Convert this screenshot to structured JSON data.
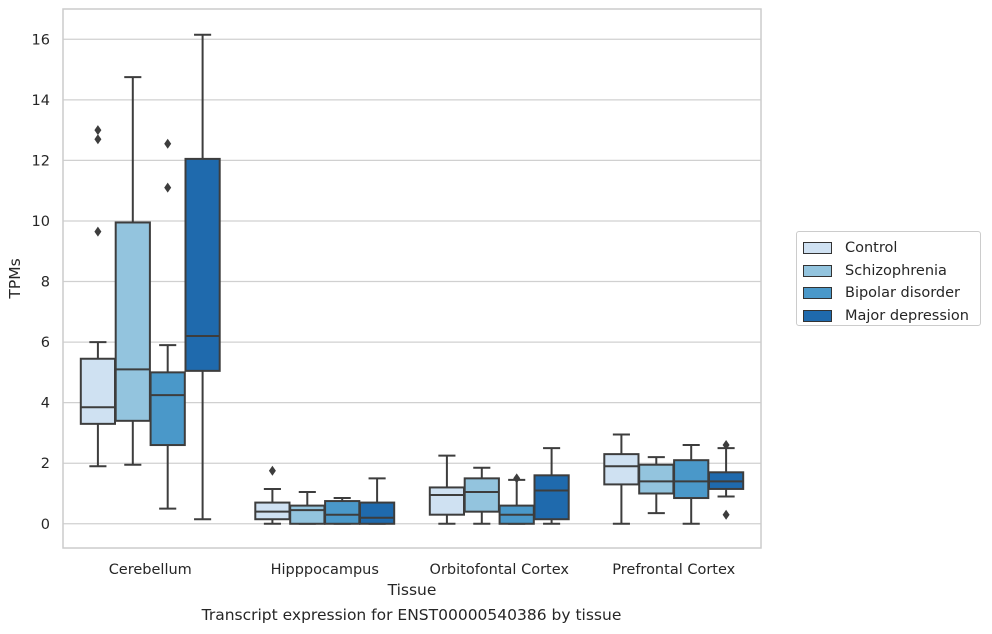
{
  "caption": "Transcript expression for ENST00000540386 by tissue",
  "chart_data": {
    "type": "box",
    "xlabel": "Tissue",
    "ylabel": "TPMs",
    "ylim": [
      -0.8,
      17
    ],
    "yticks": [
      0,
      2,
      4,
      6,
      8,
      10,
      12,
      14,
      16
    ],
    "ytick_labels": [
      "0",
      "2",
      "4",
      "6",
      "8",
      "10",
      "12",
      "14",
      "16"
    ],
    "grid": "horizontal",
    "legend_position": "right",
    "categories": [
      "Cerebellum",
      "Hipppocampus",
      "Orbitofontal Cortex",
      "Prefrontal Cortex"
    ],
    "colors": {
      "Control": "#cfe1f2",
      "Schizophrenia": "#93c4de",
      "Bipolar disorder": "#4a98c9",
      "Major depression": "#1f6aad",
      "edge": "#3d3d3d",
      "grid": "#d0d0d0"
    },
    "series": [
      {
        "name": "Control",
        "boxes": [
          {
            "whislo": 1.9,
            "q1": 3.3,
            "med": 3.85,
            "q3": 5.45,
            "whishi": 6.0,
            "fliers": [
              9.65,
              12.7,
              13.0
            ]
          },
          {
            "whislo": 0.0,
            "q1": 0.15,
            "med": 0.4,
            "q3": 0.7,
            "whishi": 1.15,
            "fliers": [
              1.75
            ]
          },
          {
            "whislo": 0.0,
            "q1": 0.3,
            "med": 0.95,
            "q3": 1.2,
            "whishi": 2.25,
            "fliers": []
          },
          {
            "whislo": 0.0,
            "q1": 1.3,
            "med": 1.9,
            "q3": 2.3,
            "whishi": 2.95,
            "fliers": []
          }
        ]
      },
      {
        "name": "Schizophrenia",
        "boxes": [
          {
            "whislo": 1.95,
            "q1": 3.4,
            "med": 5.1,
            "q3": 9.95,
            "whishi": 14.75,
            "fliers": []
          },
          {
            "whislo": 0.0,
            "q1": 0.0,
            "med": 0.45,
            "q3": 0.6,
            "whishi": 1.05,
            "fliers": []
          },
          {
            "whislo": 0.0,
            "q1": 0.4,
            "med": 1.05,
            "q3": 1.5,
            "whishi": 1.85,
            "fliers": []
          },
          {
            "whislo": 0.35,
            "q1": 1.0,
            "med": 1.4,
            "q3": 1.95,
            "whishi": 2.2,
            "fliers": []
          }
        ]
      },
      {
        "name": "Bipolar disorder",
        "boxes": [
          {
            "whislo": 0.5,
            "q1": 2.6,
            "med": 4.25,
            "q3": 5.0,
            "whishi": 5.9,
            "fliers": [
              11.1,
              12.55
            ]
          },
          {
            "whislo": 0.0,
            "q1": 0.0,
            "med": 0.3,
            "q3": 0.75,
            "whishi": 0.85,
            "fliers": []
          },
          {
            "whislo": 0.0,
            "q1": 0.0,
            "med": 0.3,
            "q3": 0.6,
            "whishi": 1.45,
            "fliers": [
              1.5
            ]
          },
          {
            "whislo": 0.0,
            "q1": 0.85,
            "med": 1.4,
            "q3": 2.1,
            "whishi": 2.6,
            "fliers": []
          }
        ]
      },
      {
        "name": "Major depression",
        "boxes": [
          {
            "whislo": 0.15,
            "q1": 5.05,
            "med": 6.2,
            "q3": 12.05,
            "whishi": 16.15,
            "fliers": []
          },
          {
            "whislo": 0.0,
            "q1": 0.0,
            "med": 0.2,
            "q3": 0.7,
            "whishi": 1.5,
            "fliers": []
          },
          {
            "whislo": 0.0,
            "q1": 0.15,
            "med": 1.1,
            "q3": 1.6,
            "whishi": 2.5,
            "fliers": []
          },
          {
            "whislo": 0.9,
            "q1": 1.15,
            "med": 1.4,
            "q3": 1.7,
            "whishi": 2.5,
            "fliers": [
              0.3,
              2.6
            ]
          }
        ]
      }
    ]
  }
}
